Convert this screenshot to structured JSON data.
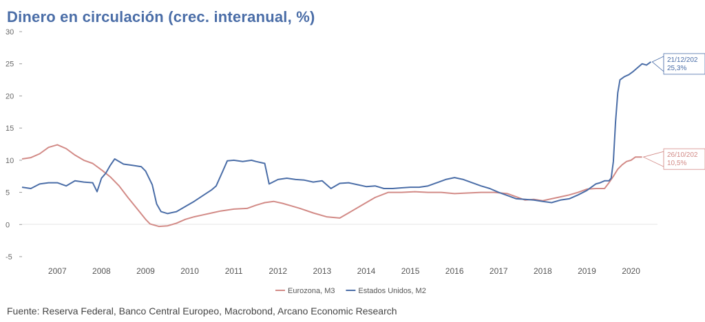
{
  "chart_data": {
    "type": "line",
    "title": "Dinero en circulación (crec. interanual, %)",
    "ylim": [
      -5,
      30
    ],
    "yticks": [
      -5,
      0,
      5,
      10,
      15,
      20,
      25,
      30
    ],
    "xlim": [
      2006.7,
      2021.1
    ],
    "xticks": [
      "2007",
      "2008",
      "2009",
      "2010",
      "2011",
      "2012",
      "2013",
      "2014",
      "2015",
      "2016",
      "2017",
      "2018",
      "2019",
      "2020"
    ],
    "grid": false,
    "legend_position": "bottom",
    "series": [
      {
        "name": "Eurozona, M3",
        "color": "#d28a86",
        "points": [
          [
            2006.7,
            10.2
          ],
          [
            2006.9,
            10.4
          ],
          [
            2007.1,
            11.0
          ],
          [
            2007.3,
            12.0
          ],
          [
            2007.5,
            12.4
          ],
          [
            2007.7,
            11.8
          ],
          [
            2007.9,
            10.8
          ],
          [
            2008.1,
            10.0
          ],
          [
            2008.3,
            9.5
          ],
          [
            2008.5,
            8.5
          ],
          [
            2008.7,
            7.4
          ],
          [
            2008.9,
            6.0
          ],
          [
            2009.1,
            4.2
          ],
          [
            2009.3,
            2.5
          ],
          [
            2009.5,
            0.8
          ],
          [
            2009.6,
            0.1
          ],
          [
            2009.8,
            -0.3
          ],
          [
            2010.0,
            -0.2
          ],
          [
            2010.2,
            0.2
          ],
          [
            2010.4,
            0.8
          ],
          [
            2010.6,
            1.2
          ],
          [
            2010.8,
            1.5
          ],
          [
            2011.0,
            1.8
          ],
          [
            2011.2,
            2.1
          ],
          [
            2011.5,
            2.4
          ],
          [
            2011.8,
            2.5
          ],
          [
            2012.0,
            3.0
          ],
          [
            2012.2,
            3.4
          ],
          [
            2012.4,
            3.6
          ],
          [
            2012.6,
            3.3
          ],
          [
            2012.8,
            2.9
          ],
          [
            2013.0,
            2.5
          ],
          [
            2013.3,
            1.8
          ],
          [
            2013.6,
            1.2
          ],
          [
            2013.9,
            1.0
          ],
          [
            2014.1,
            1.8
          ],
          [
            2014.4,
            3.0
          ],
          [
            2014.7,
            4.2
          ],
          [
            2015.0,
            5.0
          ],
          [
            2015.3,
            5.0
          ],
          [
            2015.6,
            5.1
          ],
          [
            2015.9,
            5.0
          ],
          [
            2016.2,
            5.0
          ],
          [
            2016.5,
            4.8
          ],
          [
            2016.8,
            4.9
          ],
          [
            2017.1,
            5.0
          ],
          [
            2017.4,
            5.0
          ],
          [
            2017.7,
            4.8
          ],
          [
            2017.9,
            4.3
          ],
          [
            2018.1,
            3.8
          ],
          [
            2018.3,
            3.9
          ],
          [
            2018.5,
            3.7
          ],
          [
            2018.7,
            4.0
          ],
          [
            2018.9,
            4.3
          ],
          [
            2019.1,
            4.6
          ],
          [
            2019.3,
            5.0
          ],
          [
            2019.5,
            5.5
          ],
          [
            2019.7,
            5.6
          ],
          [
            2019.9,
            5.6
          ],
          [
            2020.0,
            6.5
          ],
          [
            2020.1,
            7.5
          ],
          [
            2020.2,
            8.6
          ],
          [
            2020.3,
            9.3
          ],
          [
            2020.4,
            9.8
          ],
          [
            2020.5,
            10.0
          ],
          [
            2020.6,
            10.5
          ],
          [
            2020.75,
            10.5
          ]
        ]
      },
      {
        "name": "Estados Unidos, M2",
        "color": "#4a6da7",
        "points": [
          [
            2006.7,
            5.8
          ],
          [
            2006.9,
            5.6
          ],
          [
            2007.1,
            6.3
          ],
          [
            2007.3,
            6.5
          ],
          [
            2007.5,
            6.5
          ],
          [
            2007.7,
            6.0
          ],
          [
            2007.9,
            6.8
          ],
          [
            2008.1,
            6.6
          ],
          [
            2008.3,
            6.5
          ],
          [
            2008.4,
            5.1
          ],
          [
            2008.5,
            7.2
          ],
          [
            2008.6,
            8.0
          ],
          [
            2008.7,
            9.2
          ],
          [
            2008.8,
            10.2
          ],
          [
            2009.0,
            9.4
          ],
          [
            2009.2,
            9.2
          ],
          [
            2009.4,
            9.0
          ],
          [
            2009.5,
            8.3
          ],
          [
            2009.65,
            6.2
          ],
          [
            2009.75,
            3.2
          ],
          [
            2009.85,
            2.0
          ],
          [
            2010.0,
            1.7
          ],
          [
            2010.2,
            2.0
          ],
          [
            2010.4,
            2.8
          ],
          [
            2010.6,
            3.6
          ],
          [
            2010.8,
            4.5
          ],
          [
            2011.0,
            5.4
          ],
          [
            2011.1,
            6.0
          ],
          [
            2011.25,
            8.3
          ],
          [
            2011.35,
            9.9
          ],
          [
            2011.5,
            10.0
          ],
          [
            2011.7,
            9.8
          ],
          [
            2011.9,
            10.0
          ],
          [
            2012.0,
            9.8
          ],
          [
            2012.2,
            9.5
          ],
          [
            2012.3,
            6.3
          ],
          [
            2012.5,
            7.0
          ],
          [
            2012.7,
            7.2
          ],
          [
            2012.9,
            7.0
          ],
          [
            2013.1,
            6.9
          ],
          [
            2013.3,
            6.6
          ],
          [
            2013.5,
            6.8
          ],
          [
            2013.7,
            5.6
          ],
          [
            2013.9,
            6.4
          ],
          [
            2014.1,
            6.5
          ],
          [
            2014.3,
            6.2
          ],
          [
            2014.5,
            5.9
          ],
          [
            2014.7,
            6.0
          ],
          [
            2014.9,
            5.6
          ],
          [
            2015.1,
            5.6
          ],
          [
            2015.3,
            5.7
          ],
          [
            2015.5,
            5.8
          ],
          [
            2015.7,
            5.8
          ],
          [
            2015.9,
            6.0
          ],
          [
            2016.1,
            6.5
          ],
          [
            2016.3,
            7.0
          ],
          [
            2016.5,
            7.3
          ],
          [
            2016.7,
            7.0
          ],
          [
            2016.9,
            6.5
          ],
          [
            2017.1,
            6.0
          ],
          [
            2017.3,
            5.6
          ],
          [
            2017.5,
            5.0
          ],
          [
            2017.7,
            4.5
          ],
          [
            2017.9,
            4.0
          ],
          [
            2018.1,
            3.9
          ],
          [
            2018.3,
            3.8
          ],
          [
            2018.5,
            3.6
          ],
          [
            2018.7,
            3.4
          ],
          [
            2018.9,
            3.8
          ],
          [
            2019.1,
            4.0
          ],
          [
            2019.3,
            4.6
          ],
          [
            2019.5,
            5.3
          ],
          [
            2019.6,
            5.8
          ],
          [
            2019.7,
            6.3
          ],
          [
            2019.8,
            6.5
          ],
          [
            2019.9,
            6.8
          ],
          [
            2020.0,
            6.8
          ],
          [
            2020.05,
            7.2
          ],
          [
            2020.1,
            9.8
          ],
          [
            2020.15,
            16.0
          ],
          [
            2020.2,
            20.5
          ],
          [
            2020.25,
            22.5
          ],
          [
            2020.35,
            23.0
          ],
          [
            2020.45,
            23.3
          ],
          [
            2020.55,
            23.8
          ],
          [
            2020.65,
            24.4
          ],
          [
            2020.75,
            25.0
          ],
          [
            2020.85,
            24.8
          ],
          [
            2020.95,
            25.3
          ]
        ]
      }
    ],
    "annotations": [
      {
        "series": "Estados Unidos, M2",
        "date": "21/12/202",
        "value": "25,3%",
        "x": 2020.95,
        "y": 25.3
      },
      {
        "series": "Eurozona, M3",
        "date": "26/10/202",
        "value": "10,5%",
        "x": 2020.75,
        "y": 10.5
      }
    ]
  },
  "source": "Fuente: Reserva Federal, Banco Central Europeo, Macrobond, Arcano Economic Research"
}
